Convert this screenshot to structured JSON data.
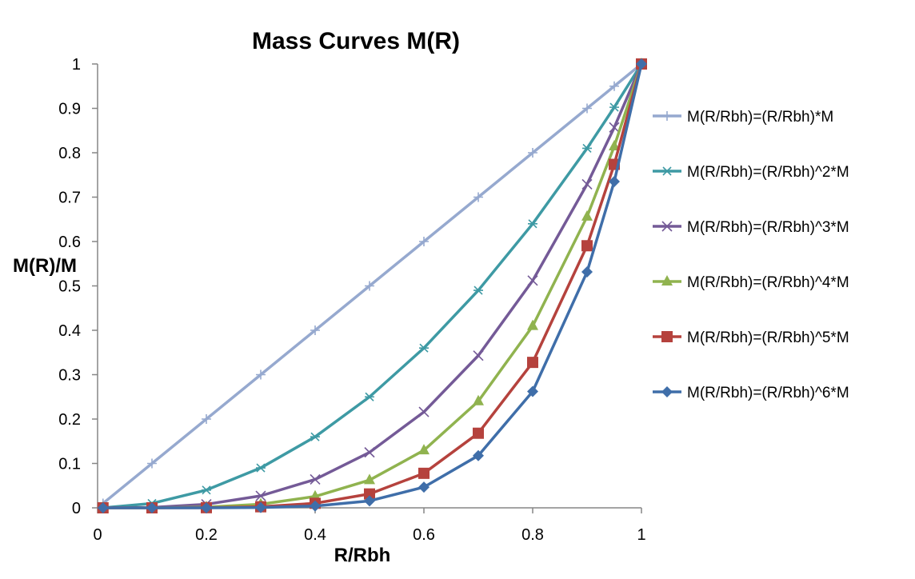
{
  "chart_data": {
    "type": "line",
    "title": "Mass Curves M(R)",
    "xlabel": "R/Rbh",
    "ylabel": "M(R)/M",
    "xlim": [
      0,
      1
    ],
    "ylim": [
      0,
      1
    ],
    "x_ticks": [
      "0",
      "0.2",
      "0.4",
      "0.6",
      "0.8",
      "1"
    ],
    "x_tick_values": [
      0,
      0.2,
      0.4,
      0.6,
      0.8,
      1
    ],
    "y_ticks": [
      "0",
      "0.1",
      "0.2",
      "0.3",
      "0.4",
      "0.5",
      "0.6",
      "0.7",
      "0.8",
      "0.9",
      "1"
    ],
    "y_tick_values": [
      0,
      0.1,
      0.2,
      0.3,
      0.4,
      0.5,
      0.6,
      0.7,
      0.8,
      0.9,
      1
    ],
    "grid": false,
    "legend_position": "right",
    "x": [
      0.01,
      0.1,
      0.2,
      0.3,
      0.4,
      0.5,
      0.6,
      0.7,
      0.8,
      0.9,
      0.95,
      1
    ],
    "series": [
      {
        "name": "M(R/Rbh)=(R/Rbh)*M",
        "marker": "plus",
        "color": "#96A9CF",
        "values": [
          0.01,
          0.1,
          0.2,
          0.3,
          0.4,
          0.5,
          0.6,
          0.7,
          0.8,
          0.9,
          0.95,
          1
        ]
      },
      {
        "name": "M(R/Rbh)=(R/Rbh)^2*M",
        "marker": "star",
        "color": "#3E9AA4",
        "values": [
          0.0001,
          0.01,
          0.04,
          0.09,
          0.16,
          0.25,
          0.36,
          0.49,
          0.64,
          0.81,
          0.9025,
          1
        ]
      },
      {
        "name": "M(R/Rbh)=(R/Rbh)^3*M",
        "marker": "x",
        "color": "#745A97",
        "values": [
          1e-06,
          0.001,
          0.008,
          0.027,
          0.064,
          0.125,
          0.216,
          0.343,
          0.512,
          0.729,
          0.857,
          1
        ]
      },
      {
        "name": "M(R/Rbh)=(R/Rbh)^4*M",
        "marker": "triangle",
        "color": "#90B34F",
        "values": [
          0,
          0.0001,
          0.0016,
          0.0081,
          0.0256,
          0.0625,
          0.1296,
          0.2401,
          0.4096,
          0.6561,
          0.8145,
          1
        ]
      },
      {
        "name": "M(R/Rbh)=(R/Rbh)^5*M",
        "marker": "square",
        "color": "#B5423D",
        "values": [
          0,
          1e-05,
          0.00032,
          0.00243,
          0.01024,
          0.03125,
          0.07776,
          0.16807,
          0.32768,
          0.59049,
          0.7738,
          1
        ]
      },
      {
        "name": "M(R/Rbh)=(R/Rbh)^6*M",
        "marker": "diamond",
        "color": "#3F6EA9",
        "values": [
          0,
          1e-06,
          6.4e-05,
          0.000729,
          0.004096,
          0.015625,
          0.046656,
          0.117649,
          0.262144,
          0.531441,
          0.7351,
          1
        ]
      }
    ]
  }
}
